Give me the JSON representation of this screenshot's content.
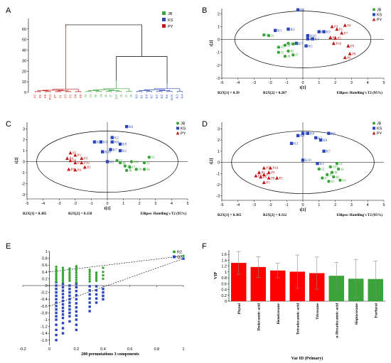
{
  "colors": {
    "JB": "#3aa33a",
    "KS": "#2b46b8",
    "PY": "#c01818",
    "ellipse": "#000000",
    "errbar": "#888888"
  },
  "panels": {
    "A": "A",
    "B": "B",
    "C": "C",
    "D": "D",
    "E": "E",
    "F": "F"
  },
  "chart_data": [
    {
      "panel": "A",
      "type": "dendrogram",
      "yticks": [
        0,
        10,
        20,
        30,
        40,
        50,
        60
      ],
      "ylim": [
        0,
        70
      ],
      "leaves": [
        "P2",
        "P6",
        "P8",
        "P10",
        "P7",
        "P1",
        "P3",
        "P5",
        "P4",
        "P9",
        "J2",
        "J3",
        "J8",
        "J4",
        "J6",
        "J7",
        "J10",
        "J5",
        "J1",
        "J9",
        "K9",
        "K1",
        "K8",
        "K7",
        "K2",
        "K5",
        "K6",
        "K10",
        "K3",
        "K4"
      ],
      "leaf_groups": [
        "PY",
        "PY",
        "PY",
        "PY",
        "PY",
        "PY",
        "PY",
        "PY",
        "PY",
        "PY",
        "JB",
        "JB",
        "JB",
        "JB",
        "JB",
        "JB",
        "JB",
        "JB",
        "JB",
        "JB",
        "KS",
        "KS",
        "KS",
        "KS",
        "KS",
        "KS",
        "KS",
        "KS",
        "KS",
        "KS"
      ],
      "legend": [
        {
          "label": "JB",
          "group": "JB"
        },
        {
          "label": "KS",
          "group": "KS"
        },
        {
          "label": "PY",
          "group": "PY"
        }
      ],
      "merge_heights": {
        "root": 64,
        "JB_KS": 34,
        "PY_top": 63,
        "JB_top": 11,
        "KS_top": 9
      }
    },
    {
      "panel": "B",
      "type": "scatter",
      "xlabel": "t[1]",
      "ylabel": "t[2]",
      "xticks": [
        -5,
        -4,
        -3,
        -2,
        -1,
        0,
        1,
        2,
        3,
        4,
        5
      ],
      "yticks": [
        -3,
        -2,
        -1,
        0,
        1,
        2
      ],
      "xlim": [
        -5,
        5
      ],
      "ylim": [
        -3,
        2.4
      ],
      "ellipse": {
        "cx": 0,
        "cy": 0,
        "rx": 4.2,
        "ry": 2.2
      },
      "footer": {
        "left": "R2X[1] = 0.39",
        "mid": "R2X[2] = 0.207",
        "right": "Ellipse: Hotelling's T2 (95%)"
      },
      "legend": [
        {
          "label": "JB",
          "group": "JB"
        },
        {
          "label": "KS",
          "group": "KS"
        },
        {
          "label": "PY",
          "group": "PY"
        }
      ],
      "points": [
        {
          "g": "KS",
          "l": "K6",
          "x": -0.3,
          "y": 2.3
        },
        {
          "g": "KS",
          "l": "K1",
          "x": -1.7,
          "y": 0.7
        },
        {
          "g": "KS",
          "l": "K2",
          "x": -0.9,
          "y": 0.8
        },
        {
          "g": "KS",
          "l": "K10",
          "x": 0.3,
          "y": 0.3
        },
        {
          "g": "KS",
          "l": "K8",
          "x": 0.3,
          "y": 0.05
        },
        {
          "g": "KS",
          "l": "K4",
          "x": 0.6,
          "y": 0.05
        },
        {
          "g": "KS",
          "l": "K3",
          "x": 1.0,
          "y": 0.6
        },
        {
          "g": "KS",
          "l": "K9",
          "x": 1.3,
          "y": 0.6
        },
        {
          "g": "KS",
          "l": "K7",
          "x": -0.4,
          "y": -0.3
        },
        {
          "g": "KS",
          "l": "K5",
          "x": 0.2,
          "y": -0.5
        },
        {
          "g": "JB",
          "l": "J3",
          "x": -2.4,
          "y": 0.35
        },
        {
          "g": "JB",
          "l": "J1",
          "x": -2.1,
          "y": 0.3
        },
        {
          "g": "JB",
          "l": "J5",
          "x": -1.5,
          "y": -0.6
        },
        {
          "g": "JB",
          "l": "J4",
          "x": -1.1,
          "y": -0.45
        },
        {
          "g": "JB",
          "l": "J10",
          "x": -0.9,
          "y": -0.3
        },
        {
          "g": "JB",
          "l": "J6",
          "x": -0.6,
          "y": -0.35
        },
        {
          "g": "JB",
          "l": "J2",
          "x": -1.5,
          "y": -1.0
        },
        {
          "g": "JB",
          "l": "J8",
          "x": -0.9,
          "y": -0.9
        },
        {
          "g": "JB",
          "l": "J9",
          "x": -1.1,
          "y": -1.3
        },
        {
          "g": "JB",
          "l": "J7",
          "x": -0.6,
          "y": -1.2
        },
        {
          "g": "PY",
          "l": "P3",
          "x": 1.8,
          "y": 1.0
        },
        {
          "g": "PY",
          "l": "P4",
          "x": 2.6,
          "y": 1.1
        },
        {
          "g": "PY",
          "l": "P1",
          "x": 2.1,
          "y": 0.8
        },
        {
          "g": "PY",
          "l": "P7",
          "x": 2.4,
          "y": 0.5
        },
        {
          "g": "PY",
          "l": "P2",
          "x": 1.7,
          "y": 0.15
        },
        {
          "g": "PY",
          "l": "P5",
          "x": 2.0,
          "y": 0.1
        },
        {
          "g": "PY",
          "l": "P10",
          "x": 1.9,
          "y": -0.3
        },
        {
          "g": "PY",
          "l": "P9",
          "x": 2.8,
          "y": -0.5
        },
        {
          "g": "PY",
          "l": "P8",
          "x": 2.9,
          "y": -1.1
        },
        {
          "g": "PY",
          "l": "P6",
          "x": 2.6,
          "y": -1.4
        }
      ]
    },
    {
      "panel": "C",
      "type": "scatter",
      "xlabel": "t[1]",
      "ylabel": "t[2]",
      "xticks": [
        -5,
        -4,
        -3,
        -2,
        -1,
        0,
        1,
        2,
        3,
        4,
        5
      ],
      "yticks": [
        -3,
        -2,
        -1,
        0,
        1,
        2,
        3
      ],
      "xlim": [
        -5,
        5
      ],
      "ylim": [
        -3.4,
        3.6
      ],
      "ellipse": {
        "cx": 0,
        "cy": 0,
        "rx": 4.4,
        "ry": 2.8
      },
      "footer": {
        "left": "R2X[1] = 0.385",
        "mid": "R2X[2] = 0.158",
        "right": "Ellipse: Hotelling's T2 (95%)"
      },
      "legend": [
        {
          "label": "JB",
          "group": "JB"
        },
        {
          "label": "KS",
          "group": "KS"
        },
        {
          "label": "PY",
          "group": "PY"
        }
      ],
      "points": [
        {
          "g": "KS",
          "l": "K6",
          "x": 1.2,
          "y": 3.2
        },
        {
          "g": "KS",
          "l": "K3",
          "x": -0.8,
          "y": 1.8
        },
        {
          "g": "KS",
          "l": "K4",
          "x": -0.4,
          "y": 1.8
        },
        {
          "g": "KS",
          "l": "K2",
          "x": 0.3,
          "y": 2.2
        },
        {
          "g": "KS",
          "l": "K8",
          "x": 0.3,
          "y": 1.8
        },
        {
          "g": "KS",
          "l": "K9",
          "x": 0.8,
          "y": 1.6
        },
        {
          "g": "KS",
          "l": "K7",
          "x": 0.2,
          "y": 1.1
        },
        {
          "g": "KS",
          "l": "K1",
          "x": 0.8,
          "y": 1.0
        },
        {
          "g": "KS",
          "l": "K10",
          "x": -0.3,
          "y": 0.9
        },
        {
          "g": "KS",
          "l": "K5",
          "x": 0.0,
          "y": 0.0
        },
        {
          "g": "JB",
          "l": "J3",
          "x": 2.6,
          "y": 0.4
        },
        {
          "g": "JB",
          "l": "J2",
          "x": 0.6,
          "y": 0.1
        },
        {
          "g": "JB",
          "l": "J8",
          "x": 0.8,
          "y": -0.1
        },
        {
          "g": "JB",
          "l": "J10",
          "x": 1.5,
          "y": 0.0
        },
        {
          "g": "JB",
          "l": "J1",
          "x": 2.3,
          "y": -0.1
        },
        {
          "g": "JB",
          "l": "J5",
          "x": 1.1,
          "y": -0.4
        },
        {
          "g": "JB",
          "l": "J7",
          "x": 1.4,
          "y": -0.5
        },
        {
          "g": "JB",
          "l": "J6",
          "x": 1.2,
          "y": -0.8
        },
        {
          "g": "JB",
          "l": "J9",
          "x": 1.8,
          "y": -0.7
        },
        {
          "g": "JB",
          "l": "J4",
          "x": 2.3,
          "y": -0.7
        },
        {
          "g": "PY",
          "l": "P7",
          "x": -2.3,
          "y": 0.8
        },
        {
          "g": "PY",
          "l": "P1",
          "x": -2.0,
          "y": 0.6
        },
        {
          "g": "PY",
          "l": "P4",
          "x": -2.5,
          "y": 0.3
        },
        {
          "g": "PY",
          "l": "P9",
          "x": -2.3,
          "y": 0.1
        },
        {
          "g": "PY",
          "l": "P3",
          "x": -1.6,
          "y": 0.3
        },
        {
          "g": "PY",
          "l": "P5",
          "x": -2.0,
          "y": -0.1
        },
        {
          "g": "PY",
          "l": "P10",
          "x": -1.6,
          "y": -0.1
        },
        {
          "g": "PY",
          "l": "P2",
          "x": -1.4,
          "y": -0.5
        },
        {
          "g": "PY",
          "l": "P8",
          "x": -2.4,
          "y": -0.7
        },
        {
          "g": "PY",
          "l": "P6",
          "x": -2.0,
          "y": -0.75
        }
      ]
    },
    {
      "panel": "D",
      "type": "scatter",
      "xlabel": "t[1]",
      "ylabel": "t[2]",
      "xticks": [
        -5,
        -4,
        -3,
        -2,
        -1,
        0,
        1,
        2,
        3,
        4,
        5
      ],
      "yticks": [
        -3,
        -2,
        -1,
        0,
        1,
        2,
        3
      ],
      "xlim": [
        -5,
        5
      ],
      "ylim": [
        -3.4,
        3.6
      ],
      "ellipse": {
        "cx": 0,
        "cy": 0,
        "rx": 4.4,
        "ry": 2.8
      },
      "footer": {
        "left": "R2X[1] = 0.365",
        "mid": "R2X[2] = 0.112",
        "right": "Ellipse: Hotelling's T2 (95%)"
      },
      "legend": [
        {
          "label": "JB",
          "group": "JB"
        },
        {
          "label": "KS",
          "group": "KS"
        },
        {
          "label": "PY",
          "group": "PY"
        }
      ],
      "points": [
        {
          "g": "KS",
          "l": "K4",
          "x": -0.3,
          "y": 2.4
        },
        {
          "g": "KS",
          "l": "K5",
          "x": 0.0,
          "y": 2.6
        },
        {
          "g": "KS",
          "l": "K8",
          "x": 0.3,
          "y": 2.6
        },
        {
          "g": "KS",
          "l": "K6",
          "x": 1.6,
          "y": 2.6
        },
        {
          "g": "KS",
          "l": "K2",
          "x": 0.8,
          "y": 2.2
        },
        {
          "g": "KS",
          "l": "K9",
          "x": 1.1,
          "y": 2.0
        },
        {
          "g": "KS",
          "l": "K3",
          "x": -0.7,
          "y": 1.7
        },
        {
          "g": "KS",
          "l": "K7",
          "x": 1.3,
          "y": 1.0
        },
        {
          "g": "KS",
          "l": "K10",
          "x": 0.0,
          "y": 0.2
        },
        {
          "g": "KS",
          "l": "K1",
          "x": 0.9,
          "y": -0.1
        },
        {
          "g": "JB",
          "l": "J2",
          "x": 1.0,
          "y": -0.6
        },
        {
          "g": "JB",
          "l": "J3",
          "x": 2.1,
          "y": -0.1
        },
        {
          "g": "JB",
          "l": "J10",
          "x": 1.7,
          "y": -0.4
        },
        {
          "g": "JB",
          "l": "J1",
          "x": 2.2,
          "y": -0.6
        },
        {
          "g": "JB",
          "l": "J9",
          "x": 1.8,
          "y": -0.9
        },
        {
          "g": "JB",
          "l": "J5",
          "x": 1.5,
          "y": -1.1
        },
        {
          "g": "JB",
          "l": "J8",
          "x": 1.9,
          "y": -1.3
        },
        {
          "g": "JB",
          "l": "J7",
          "x": 1.2,
          "y": -1.4
        },
        {
          "g": "JB",
          "l": "J4",
          "x": 2.3,
          "y": -1.6
        },
        {
          "g": "JB",
          "l": "J6",
          "x": 1.6,
          "y": -1.7
        },
        {
          "g": "PY",
          "l": "P7",
          "x": -2.4,
          "y": -0.5
        },
        {
          "g": "PY",
          "l": "P10",
          "x": -2.0,
          "y": -0.5
        },
        {
          "g": "PY",
          "l": "P1",
          "x": -2.7,
          "y": -0.9
        },
        {
          "g": "PY",
          "l": "P9",
          "x": -2.1,
          "y": -0.9
        },
        {
          "g": "PY",
          "l": "P5",
          "x": -2.4,
          "y": -1.1
        },
        {
          "g": "PY",
          "l": "P4",
          "x": -2.9,
          "y": -1.2
        },
        {
          "g": "PY",
          "l": "P6",
          "x": -2.6,
          "y": -1.3
        },
        {
          "g": "PY",
          "l": "P8",
          "x": -2.1,
          "y": -1.4
        },
        {
          "g": "PY",
          "l": "P2",
          "x": -1.6,
          "y": -1.4
        },
        {
          "g": "PY",
          "l": "P3",
          "x": -2.4,
          "y": -1.8
        }
      ]
    },
    {
      "panel": "E",
      "type": "scatter",
      "xlabel": "200 permutations 3 components",
      "xticks": [
        -0.2,
        0,
        0.2,
        0.4,
        0.6,
        0.8,
        1
      ],
      "yticks": [
        -1.6,
        -1.4,
        -1.2,
        -1,
        -0.8,
        -0.6,
        -0.4,
        -0.2,
        0,
        0.2,
        0.4,
        0.6,
        0.8,
        1
      ],
      "xlim": [
        -0.2,
        1.0
      ],
      "ylim": [
        -1.75,
        1.0
      ],
      "legend": [
        {
          "label": "R2",
          "group": "JB"
        },
        {
          "label": "Q2",
          "group": "KS"
        }
      ],
      "r2_line": {
        "intercept": 0.4,
        "end_value": 0.87
      },
      "q2_line": {
        "intercept": -0.6,
        "end_value": 0.79
      },
      "r2_points": [
        {
          "x": 1.0,
          "y": 0.87
        },
        {
          "x": 0.05,
          "ylist": [
            0.12,
            0.18,
            0.24,
            0.3,
            0.36,
            0.42,
            0.48,
            0.55
          ]
        },
        {
          "x": 0.1,
          "ylist": [
            0.1,
            0.16,
            0.22,
            0.28,
            0.34,
            0.4,
            0.46,
            0.52
          ]
        },
        {
          "x": 0.15,
          "ylist": [
            0.14,
            0.2,
            0.26,
            0.32,
            0.38,
            0.45,
            0.5
          ]
        },
        {
          "x": 0.2,
          "ylist": [
            0.1,
            0.17,
            0.24,
            0.31,
            0.38,
            0.45,
            0.52,
            0.57
          ]
        },
        {
          "x": 0.3,
          "ylist": [
            0.12,
            0.19,
            0.26,
            0.33,
            0.4,
            0.46
          ]
        },
        {
          "x": 0.35,
          "ylist": [
            0.14,
            0.2,
            0.26,
            0.32,
            0.38
          ]
        },
        {
          "x": 0.4,
          "ylist": [
            0.2,
            0.3,
            0.4,
            0.52
          ]
        }
      ],
      "q2_points": [
        {
          "x": 1.0,
          "y": 0.79
        },
        {
          "x": 0.05,
          "ylist": [
            -1.6,
            -1.45,
            -1.3,
            -1.15,
            -1.0,
            -0.9,
            -0.8,
            -0.7,
            -0.6,
            -0.5,
            -0.4,
            -0.3,
            -0.2,
            -0.1,
            0.0,
            0.1
          ]
        },
        {
          "x": 0.1,
          "ylist": [
            -1.4,
            -1.25,
            -1.1,
            -0.95,
            -0.85,
            -0.75,
            -0.65,
            -0.55,
            -0.45,
            -0.35,
            -0.25,
            -0.15,
            -0.05,
            0.05
          ]
        },
        {
          "x": 0.15,
          "ylist": [
            -1.05,
            -0.9,
            -0.8,
            -0.7,
            -0.6,
            -0.5,
            -0.4,
            -0.3,
            -0.2,
            -0.1,
            0.0
          ]
        },
        {
          "x": 0.2,
          "ylist": [
            -1.3,
            -1.15,
            -1.0,
            -0.88,
            -0.76,
            -0.64,
            -0.52,
            -0.4,
            -0.28,
            -0.16,
            -0.05,
            0.05
          ]
        },
        {
          "x": 0.3,
          "ylist": [
            -0.75,
            -0.62,
            -0.5,
            -0.38,
            -0.26,
            -0.14,
            -0.02
          ]
        },
        {
          "x": 0.35,
          "ylist": [
            -0.5,
            -0.38,
            -0.26,
            -0.14,
            -0.02
          ]
        },
        {
          "x": 0.4,
          "ylist": [
            -0.4,
            -0.3,
            -0.2,
            -0.1
          ]
        }
      ]
    },
    {
      "panel": "F",
      "type": "bar",
      "ylabel": "VIP",
      "xlabel": "Var ID (Primary)",
      "yticks": [
        0,
        0.2,
        0.4,
        0.6,
        0.8,
        1,
        1.2,
        1.4,
        1.6
      ],
      "ylim": [
        0,
        1.75
      ],
      "categories": [
        "Phytol",
        "Dodecanoic acid",
        "Heneicosane",
        "Tetradecanoic acid",
        "Tricosane",
        "n-Hexadecanoic acid",
        "Heptacosane",
        "Furfural"
      ],
      "values": [
        1.31,
        1.17,
        1.05,
        1.01,
        0.96,
        0.87,
        0.77,
        0.76
      ],
      "errors": [
        0.39,
        0.35,
        0.25,
        0.57,
        0.55,
        0.45,
        0.66,
        0.61
      ],
      "bar_colors": [
        "#ff0000",
        "#ff0000",
        "#ff0000",
        "#ff0000",
        "#ff0000",
        "#3aa33a",
        "#3aa33a",
        "#3aa33a"
      ]
    }
  ]
}
